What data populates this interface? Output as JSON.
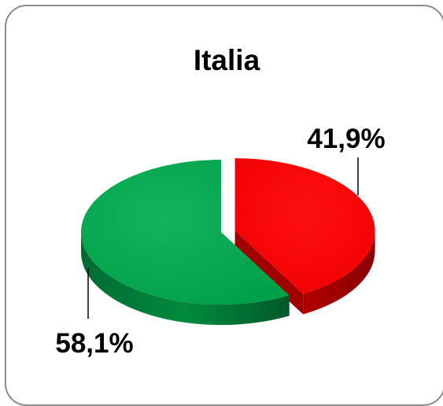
{
  "chart_data": {
    "type": "pie",
    "title": "Italia",
    "slices": [
      {
        "value": 41.9,
        "label": "41,9%",
        "color": "#ff0000",
        "exploded": true
      },
      {
        "value": 58.1,
        "label": "58,1%",
        "color": "#00a84e",
        "exploded": false
      }
    ],
    "style": "3d"
  }
}
